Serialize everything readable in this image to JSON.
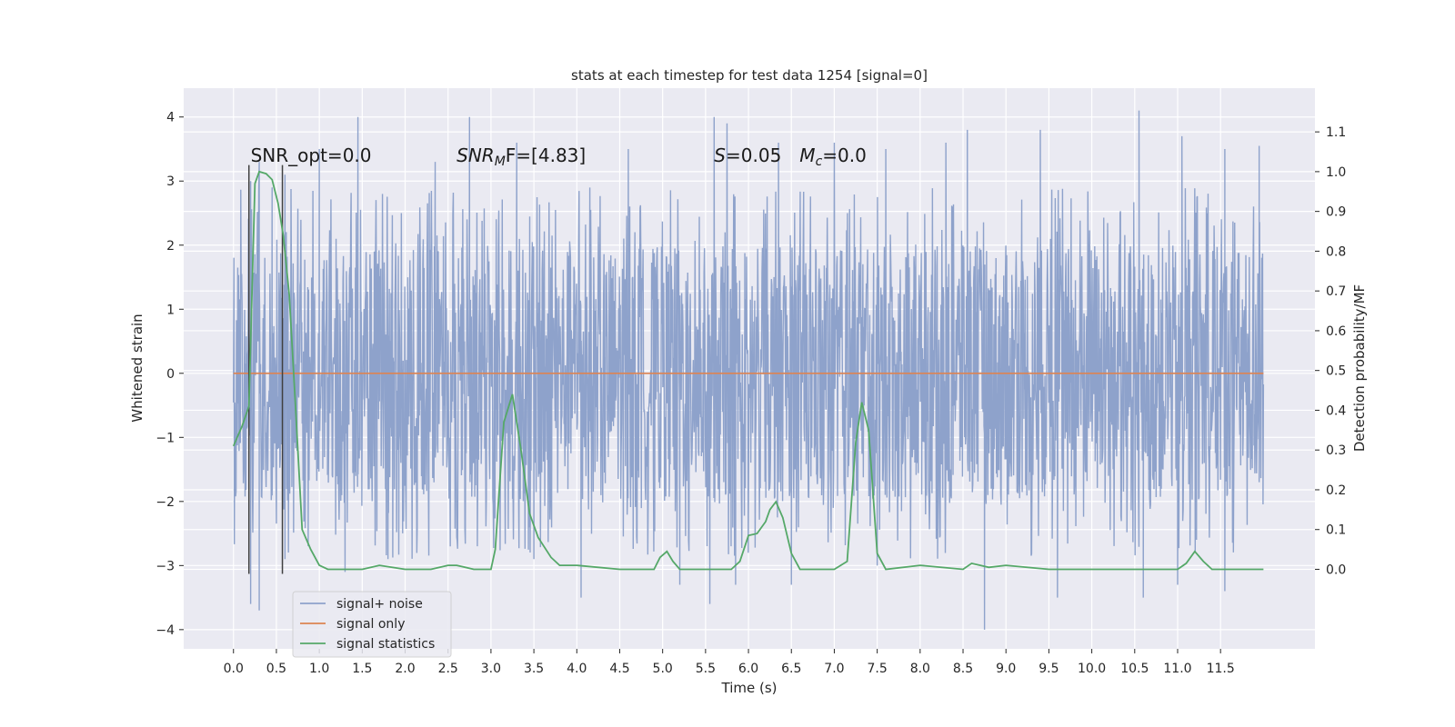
{
  "chart_data": {
    "type": "line",
    "title": "stats at each timestep for test data 1254 [signal=0]",
    "xlabel": "Time (s)",
    "ylabel": "Whitened strain",
    "ylabel_right": "Detection probability/MF",
    "xlim": [
      -0.58,
      12.6
    ],
    "ylim": [
      -4.3,
      4.45
    ],
    "ylim_right": [
      -0.2,
      1.21
    ],
    "x_ticks": [
      "0.0",
      "0.5",
      "1.0",
      "1.5",
      "2.0",
      "2.5",
      "3.0",
      "3.5",
      "4.0",
      "4.5",
      "5.0",
      "5.5",
      "6.0",
      "6.5",
      "7.0",
      "7.5",
      "8.0",
      "8.5",
      "9.0",
      "9.5",
      "10.0",
      "10.5",
      "11.0",
      "11.5"
    ],
    "x_tick_values": [
      0,
      0.5,
      1,
      1.5,
      2,
      2.5,
      3,
      3.5,
      4,
      4.5,
      5,
      5.5,
      6,
      6.5,
      7,
      7.5,
      8,
      8.5,
      9,
      9.5,
      10,
      10.5,
      11,
      11.5
    ],
    "y_ticks": [
      "4",
      "3",
      "2",
      "1",
      "0",
      "−1",
      "−2",
      "−3",
      "−4"
    ],
    "y_tick_values": [
      4,
      3,
      2,
      1,
      0,
      -1,
      -2,
      -3,
      -4
    ],
    "y_right_ticks": [
      "1.1",
      "1.0",
      "0.9",
      "0.8",
      "0.7",
      "0.6",
      "0.5",
      "0.4",
      "0.3",
      "0.2",
      "0.1",
      "0.0"
    ],
    "y_right_tick_values": [
      1.1,
      1.0,
      0.9,
      0.8,
      0.7,
      0.6,
      0.5,
      0.4,
      0.3,
      0.2,
      0.1,
      0.0
    ],
    "grid": true,
    "legend_position": "lower-left",
    "series": [
      {
        "name": "signal+ noise",
        "color": "#8ea2cb",
        "axis": "left",
        "x_range": [
          0,
          12
        ],
        "description_value_band": [
          -1.9,
          1.9
        ],
        "peaks_high": [
          [
            0.05,
            1.65
          ],
          [
            0.2,
            3.0
          ],
          [
            0.3,
            3.3
          ],
          [
            0.45,
            2.9
          ],
          [
            0.6,
            3.1
          ],
          [
            1.0,
            3.5
          ],
          [
            1.45,
            4.0
          ],
          [
            2.35,
            3.3
          ],
          [
            2.75,
            4.0
          ],
          [
            3.3,
            3.6
          ],
          [
            4.6,
            3.5
          ],
          [
            5.6,
            4.0
          ],
          [
            5.75,
            3.9
          ],
          [
            6.35,
            3.6
          ],
          [
            7.0,
            3.6
          ],
          [
            7.6,
            3.5
          ],
          [
            8.3,
            3.6
          ],
          [
            8.55,
            3.8
          ],
          [
            9.4,
            3.8
          ],
          [
            10.55,
            4.1
          ],
          [
            11.05,
            3.7
          ],
          [
            11.55,
            3.5
          ],
          [
            11.95,
            3.55
          ]
        ],
        "peaks_low": [
          [
            0.2,
            -3.6
          ],
          [
            0.3,
            -3.7
          ],
          [
            0.6,
            -2.9
          ],
          [
            1.3,
            -3.1
          ],
          [
            1.8,
            -2.9
          ],
          [
            3.5,
            -2.9
          ],
          [
            4.05,
            -3.5
          ],
          [
            5.2,
            -3.3
          ],
          [
            5.55,
            -3.6
          ],
          [
            5.85,
            -3.3
          ],
          [
            6.5,
            -3.3
          ],
          [
            7.5,
            -3.0
          ],
          [
            8.75,
            -4.0
          ],
          [
            9.6,
            -3.5
          ],
          [
            10.6,
            -3.5
          ],
          [
            11.0,
            -3.3
          ],
          [
            11.55,
            -3.4
          ],
          [
            11.95,
            -1.7
          ]
        ]
      },
      {
        "name": "signal only",
        "color": "#dd8452",
        "axis": "left",
        "x": [
          0,
          12
        ],
        "values": [
          0,
          0
        ]
      },
      {
        "name": "signal statistics",
        "color": "#55a868",
        "axis": "right",
        "x": [
          0,
          0.1,
          0.18,
          0.25,
          0.3,
          0.38,
          0.45,
          0.52,
          0.58,
          0.65,
          0.72,
          0.8,
          0.9,
          1.0,
          1.1,
          1.5,
          1.7,
          2.0,
          2.3,
          2.5,
          2.6,
          2.8,
          3.0,
          3.05,
          3.15,
          3.25,
          3.35,
          3.45,
          3.55,
          3.7,
          3.8,
          4.0,
          4.5,
          4.9,
          4.97,
          5.05,
          5.12,
          5.2,
          5.5,
          5.8,
          5.9,
          6.0,
          6.1,
          6.2,
          6.25,
          6.32,
          6.4,
          6.5,
          6.6,
          6.8,
          7.0,
          7.15,
          7.25,
          7.32,
          7.4,
          7.5,
          7.6,
          8.0,
          8.5,
          8.6,
          8.8,
          9.0,
          9.5,
          10.0,
          11.0,
          11.1,
          11.2,
          11.3,
          11.4,
          12.0
        ],
        "values": [
          0.31,
          0.36,
          0.41,
          0.97,
          1.0,
          0.995,
          0.98,
          0.92,
          0.84,
          0.69,
          0.42,
          0.1,
          0.05,
          0.01,
          0.0,
          0.0,
          0.01,
          0.0,
          0.0,
          0.01,
          0.01,
          0.0,
          0.0,
          0.05,
          0.37,
          0.44,
          0.3,
          0.14,
          0.08,
          0.03,
          0.01,
          0.01,
          0.0,
          0.0,
          0.03,
          0.045,
          0.02,
          0.0,
          0.0,
          0.0,
          0.02,
          0.085,
          0.09,
          0.12,
          0.15,
          0.17,
          0.13,
          0.04,
          0.0,
          0.0,
          0.0,
          0.02,
          0.32,
          0.42,
          0.35,
          0.04,
          0.0,
          0.01,
          0.0,
          0.015,
          0.005,
          0.01,
          0.0,
          0.0,
          0.0,
          0.015,
          0.045,
          0.02,
          0.0,
          0.0
        ]
      }
    ],
    "vertical_lines": {
      "color": "#404040",
      "x": [
        0.18,
        0.57
      ],
      "y_range": [
        -3.13,
        3.25
      ]
    },
    "annotations": [
      {
        "kind": "plain",
        "x": 0.2,
        "y": 3.3,
        "text": "SNR_opt=0.0"
      },
      {
        "kind": "snr_mf",
        "x": 2.6,
        "y": 3.3,
        "main": "SNR",
        "sub": "M",
        "tail": "F=[4.83]"
      },
      {
        "kind": "s_mc",
        "x": 5.6,
        "y": 3.3,
        "s_main": "S",
        "s_tail": "=0.05",
        "mc_main": "M",
        "mc_sub": "c",
        "mc_tail": "=0.0"
      }
    ]
  }
}
